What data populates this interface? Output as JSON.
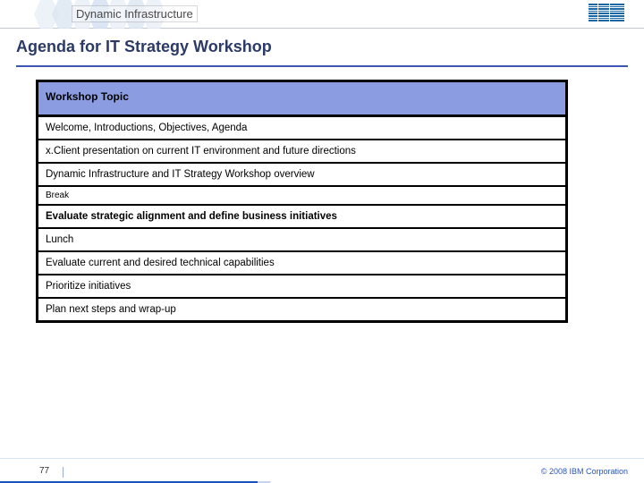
{
  "banner": {
    "title": "Dynamic Infrastructure",
    "hex_color_light": "#e8eef6",
    "hex_color_mid": "#dbe5f1",
    "logo_bar_color": "#1b67a6"
  },
  "slide": {
    "title": "Agenda for  IT Strategy Workshop",
    "title_color": "#2b3a67",
    "underline_color": "#3a57b5"
  },
  "agenda_table": {
    "header": "Workshop Topic",
    "header_bg": "#8b9de0",
    "border_color": "#000000",
    "rows": [
      {
        "text": "Welcome, Introductions, Objectives, Agenda",
        "bold": false,
        "small": false
      },
      {
        "text": "x.Client presentation on current IT environment and future directions",
        "bold": false,
        "small": false
      },
      {
        "text": "Dynamic Infrastructure and IT Strategy Workshop overview",
        "bold": false,
        "small": false
      },
      {
        "text": "Break",
        "bold": false,
        "small": true
      },
      {
        "text": "Evaluate strategic alignment and define business initiatives",
        "bold": true,
        "small": false
      },
      {
        "text": "Lunch",
        "bold": false,
        "small": false
      },
      {
        "text": "Evaluate current and desired technical capabilities",
        "bold": false,
        "small": false
      },
      {
        "text": "Prioritize initiatives",
        "bold": false,
        "small": false
      },
      {
        "text": "Plan next steps and wrap-up",
        "bold": false,
        "small": false
      }
    ]
  },
  "footer": {
    "page_number": "77",
    "copyright": "© 2008 IBM Corporation",
    "copyright_color": "#2a55b8"
  }
}
